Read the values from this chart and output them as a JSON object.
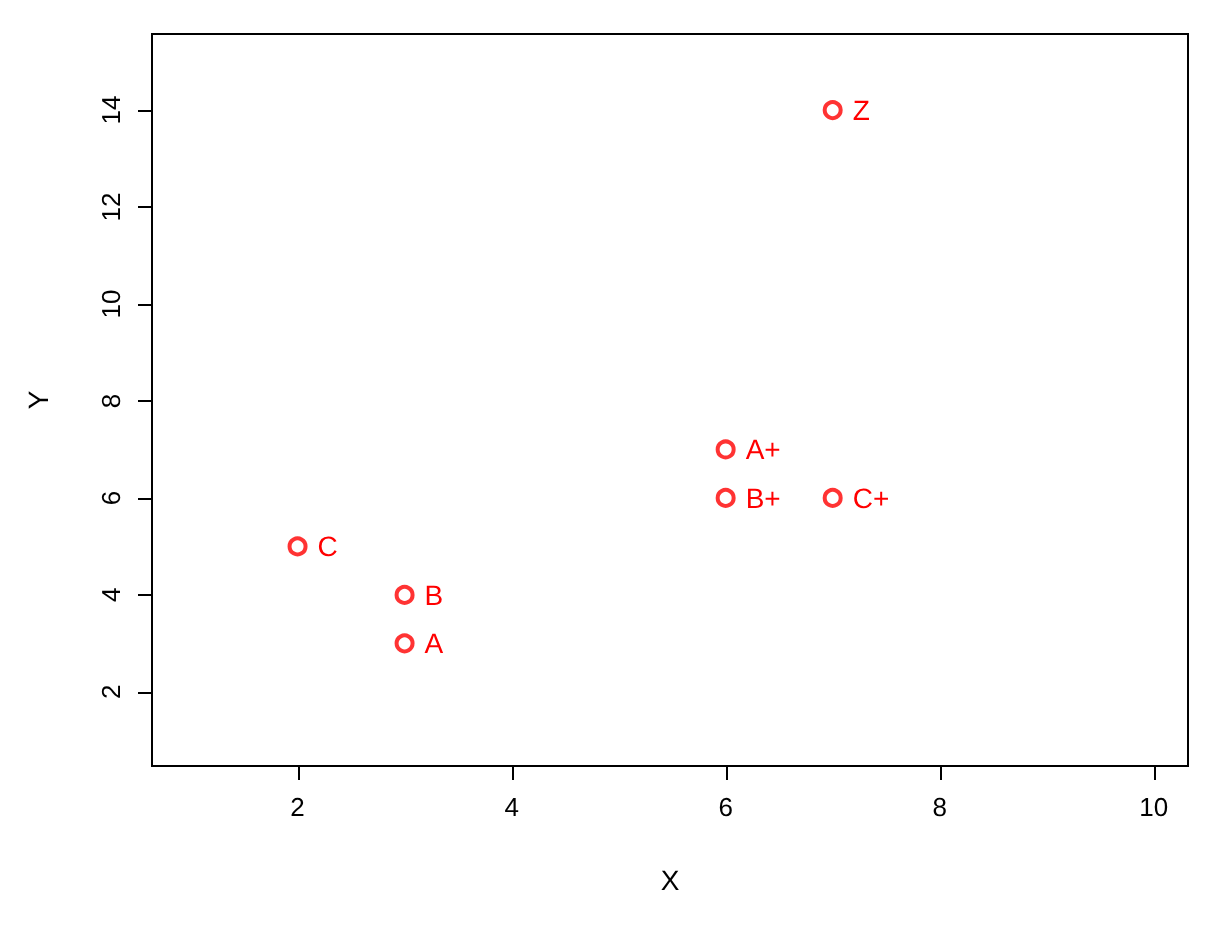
{
  "chart_data": {
    "type": "scatter",
    "xlabel": "X",
    "ylabel": "Y",
    "x": [
      3,
      3,
      2,
      6,
      6,
      7,
      7
    ],
    "values": [
      3,
      4,
      5,
      7,
      6,
      6,
      14
    ],
    "color": "#ff0000",
    "marker": "circle",
    "grid": false,
    "xlim": [
      0.64,
      10.32
    ],
    "xticks": [
      2,
      4,
      6,
      8,
      10
    ],
    "ylim": [
      0.47,
      15.57
    ],
    "yticks": [
      2,
      4,
      6,
      8,
      10,
      12,
      14
    ],
    "annotations": [
      {
        "text": "A",
        "x": 3,
        "y": 3
      },
      {
        "text": "B",
        "x": 3,
        "y": 4
      },
      {
        "text": "C",
        "x": 2,
        "y": 5
      },
      {
        "text": "A+",
        "x": 6,
        "y": 7
      },
      {
        "text": "B+",
        "x": 6,
        "y": 6
      },
      {
        "text": "C+",
        "x": 7,
        "y": 6
      },
      {
        "text": "Z",
        "x": 7,
        "y": 14
      }
    ]
  }
}
